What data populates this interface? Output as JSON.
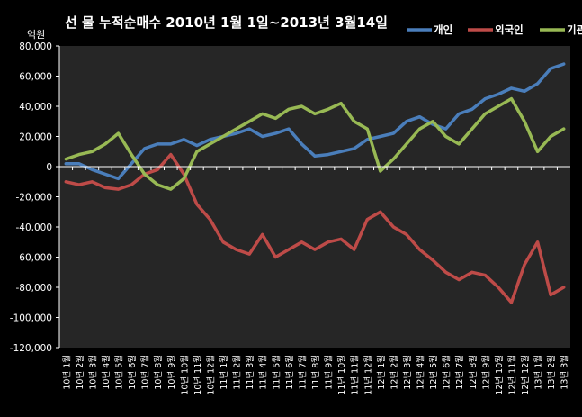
{
  "chart_data": {
    "type": "line",
    "title": "선 물 누적순매수 2010년 1월 1일~2013년 3월14일",
    "ylabel": "억원",
    "ylim": [
      -120000,
      80000
    ],
    "yticks": [
      80000,
      60000,
      40000,
      20000,
      0,
      -20000,
      -40000,
      -60000,
      -80000,
      -100000,
      -120000
    ],
    "ytick_labels": [
      "80,000",
      "60,000",
      "40,000",
      "20,000",
      "0",
      "-20,000",
      "-40,000",
      "-60,000",
      "-80,000",
      "-100,000",
      "-120,000"
    ],
    "categories": [
      "10년 1월",
      "10년 2월",
      "10년 3월",
      "10년 4월",
      "10년 5월",
      "10년 6월",
      "10년 7월",
      "10년 8월",
      "10년 9월",
      "10년 10월",
      "10년 11월",
      "10년 12월",
      "11년 1월",
      "11년 2월",
      "11년 3월",
      "11년 4월",
      "11년 5월",
      "11년 6월",
      "11년 7월",
      "11년 8월",
      "11년 9월",
      "11년 10월",
      "11년 11월",
      "11년 12월",
      "12년 1월",
      "12년 2월",
      "12년 3월",
      "12년 4월",
      "12년 5월",
      "12년 6월",
      "12년 7월",
      "12년 8월",
      "12년 9월",
      "12년 10월",
      "12년 11월",
      "12년 12월",
      "13년 1월",
      "13년 2월",
      "13년 3월"
    ],
    "legend_position": "top-right",
    "grid": false,
    "colors": {
      "background": "#000000",
      "plot": "#262626",
      "axis": "#ffffff"
    },
    "series": [
      {
        "name": "개인",
        "color": "#4a7ebb",
        "values": [
          2000,
          2000,
          -2000,
          -5000,
          -8000,
          2000,
          12000,
          15000,
          15000,
          18000,
          14000,
          18000,
          20000,
          22000,
          25000,
          20000,
          22000,
          25000,
          15000,
          7000,
          8000,
          10000,
          12000,
          18000,
          20000,
          22000,
          30000,
          33000,
          28000,
          25000,
          35000,
          38000,
          45000,
          48000,
          52000,
          50000,
          55000,
          65000,
          68000
        ]
      },
      {
        "name": "외국인",
        "color": "#be4b48",
        "values": [
          -10000,
          -12000,
          -10000,
          -14000,
          -15000,
          -12000,
          -5000,
          -2000,
          8000,
          -5000,
          -25000,
          -35000,
          -50000,
          -55000,
          -58000,
          -45000,
          -60000,
          -55000,
          -50000,
          -55000,
          -50000,
          -48000,
          -55000,
          -35000,
          -30000,
          -40000,
          -45000,
          -55000,
          -62000,
          -70000,
          -75000,
          -70000,
          -72000,
          -80000,
          -90000,
          -65000,
          -50000,
          -85000,
          -80000
        ]
      },
      {
        "name": "기관",
        "color": "#98b954",
        "values": [
          5000,
          8000,
          10000,
          15000,
          22000,
          8000,
          -5000,
          -12000,
          -15000,
          -8000,
          10000,
          15000,
          20000,
          25000,
          30000,
          35000,
          32000,
          38000,
          40000,
          35000,
          38000,
          42000,
          30000,
          25000,
          -3000,
          5000,
          15000,
          25000,
          30000,
          20000,
          15000,
          25000,
          35000,
          40000,
          45000,
          30000,
          10000,
          20000,
          25000
        ]
      }
    ]
  }
}
